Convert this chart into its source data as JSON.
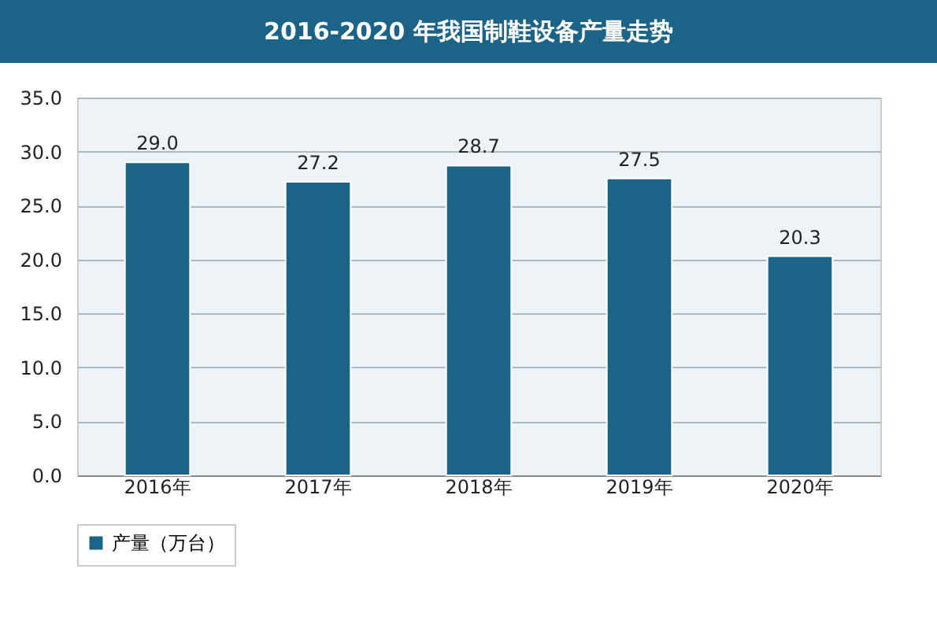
{
  "chart_data": {
    "type": "bar",
    "title": "2016-2020 年我国制鞋设备产量走势",
    "categories": [
      "2016年",
      "2017年",
      "2018年",
      "2019年",
      "2020年"
    ],
    "series": [
      {
        "name": "产量（万台）",
        "color": "#1b6487",
        "values": [
          29.0,
          27.2,
          28.7,
          27.5,
          20.3
        ]
      }
    ],
    "ylim": [
      0,
      35
    ],
    "yticks": [
      {
        "value": 0,
        "label": "0.0"
      },
      {
        "value": 5,
        "label": "5.0"
      },
      {
        "value": 10,
        "label": "10.0"
      },
      {
        "value": 15,
        "label": "15.0"
      },
      {
        "value": 20,
        "label": "20.0"
      },
      {
        "value": 25,
        "label": "25.0"
      },
      {
        "value": 30,
        "label": "30.0"
      },
      {
        "value": 35,
        "label": "35.0"
      }
    ],
    "value_labels": [
      "29.0",
      "27.2",
      "28.7",
      "27.5",
      "20.3"
    ],
    "grid": true,
    "legend": "bottom"
  }
}
